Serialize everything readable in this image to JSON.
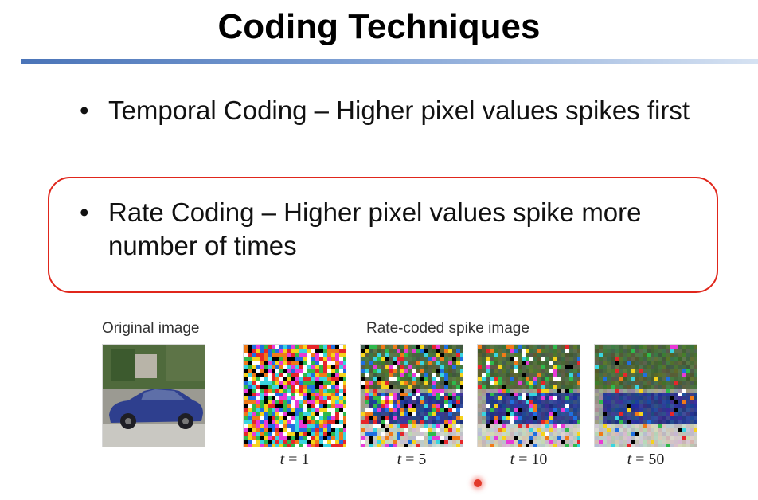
{
  "slide": {
    "title": "Coding Techniques",
    "accent_rule_color": "#4a74b8",
    "highlight_box_color": "#e0261b"
  },
  "bullets": [
    {
      "marker": "•",
      "text": "Temporal Coding – Higher pixel values spikes first",
      "highlighted": false
    },
    {
      "marker": "•",
      "text": "Rate Coding – Higher pixel values spike more number of times",
      "highlighted": true
    }
  ],
  "figure": {
    "original_caption": "Original image",
    "rate_caption": "Rate-coded spike image",
    "panels": [
      {
        "var": "t",
        "eq": " = ",
        "value": "1",
        "spike_fraction": 0.0
      },
      {
        "var": "t",
        "eq": " = ",
        "value": "5",
        "spike_fraction": 0.55
      },
      {
        "var": "t",
        "eq": " = ",
        "value": "10",
        "spike_fraction": 0.7
      },
      {
        "var": "t",
        "eq": " = ",
        "value": "50",
        "spike_fraction": 0.9
      }
    ]
  },
  "cursor": {
    "color": "#e23a2a"
  }
}
